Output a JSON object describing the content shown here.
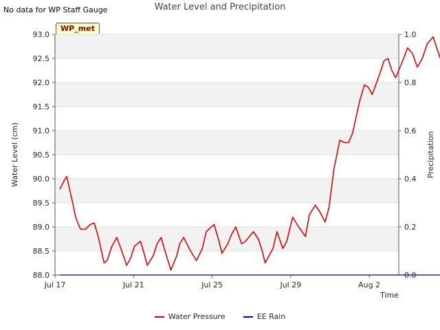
{
  "header": {
    "title": "Water Level and Precipitation",
    "no_data_note": "No data for WP Staff Gauge",
    "site_badge": "WP_met"
  },
  "axes": {
    "y_left_label": "Water Level (cm)",
    "y_right_label": "Precipitation",
    "x_label": "Time"
  },
  "legend": [
    {
      "label": "Water Pressure",
      "color": "#dd0000"
    },
    {
      "label": "EE Rain",
      "color": "#0000bb"
    }
  ],
  "chart_data": {
    "type": "line",
    "title": "Water Level and Precipitation",
    "xlabel": "Time",
    "ylabel": "Water Level (cm)",
    "y2label": "Precipitation",
    "x_ticks": [
      "Jul 17",
      "Jul 21",
      "Jul 25",
      "Jul 29",
      "Aug 2"
    ],
    "x_range": [
      "Jul 17",
      "Aug 3.5"
    ],
    "ylim": [
      88.0,
      93.0
    ],
    "y_ticks": [
      88.0,
      88.5,
      89.0,
      89.5,
      90.0,
      90.5,
      91.0,
      91.5,
      92.0,
      92.5,
      93.0
    ],
    "y2lim": [
      0.0,
      1.0
    ],
    "y2_ticks": [
      0.0,
      0.2,
      0.4,
      0.6,
      0.8,
      1.0
    ],
    "banded_background": true,
    "legend_position": "bottom-center",
    "series": [
      {
        "name": "Water Pressure",
        "axis": "left",
        "color": "#dd0000",
        "x_days": [
          0.25,
          0.45,
          0.6,
          0.9,
          1.05,
          1.3,
          1.55,
          1.8,
          2.0,
          2.2,
          2.5,
          2.65,
          2.9,
          3.15,
          3.4,
          3.65,
          3.85,
          4.05,
          4.35,
          4.5,
          4.7,
          5.0,
          5.2,
          5.4,
          5.6,
          5.9,
          6.2,
          6.35,
          6.55,
          6.9,
          7.2,
          7.5,
          7.7,
          8.1,
          8.35,
          8.5,
          8.8,
          9.0,
          9.2,
          9.5,
          9.7,
          10.1,
          10.35,
          10.55,
          10.7,
          11.1,
          11.3,
          11.6,
          11.8,
          12.1,
          12.4,
          12.75,
          12.95,
          13.25,
          13.5,
          13.75,
          13.95,
          14.2,
          14.5,
          14.75,
          14.95,
          15.15,
          15.5,
          15.75,
          15.95,
          16.15,
          16.55,
          16.75,
          16.95,
          17.15,
          17.35,
          17.55,
          17.75,
          17.95,
          18.2,
          18.45,
          18.7,
          18.95,
          19.25,
          19.45,
          19.7,
          19.9,
          20.15,
          20.4,
          20.6
        ],
        "values": [
          89.78,
          89.95,
          90.05,
          89.5,
          89.2,
          88.95,
          88.95,
          89.05,
          89.08,
          88.8,
          88.25,
          88.3,
          88.6,
          88.78,
          88.5,
          88.2,
          88.35,
          88.6,
          88.7,
          88.5,
          88.2,
          88.4,
          88.65,
          88.78,
          88.5,
          88.1,
          88.4,
          88.65,
          88.78,
          88.5,
          88.3,
          88.55,
          88.9,
          89.05,
          88.7,
          88.45,
          88.65,
          88.85,
          89.0,
          88.65,
          88.7,
          88.9,
          88.75,
          88.5,
          88.25,
          88.55,
          88.9,
          88.55,
          88.7,
          89.2,
          89.0,
          88.8,
          89.25,
          89.45,
          89.3,
          89.1,
          89.4,
          90.2,
          90.8,
          90.75,
          90.75,
          90.95,
          91.6,
          91.95,
          91.9,
          91.75,
          92.2,
          92.45,
          92.5,
          92.25,
          92.1,
          92.3,
          92.5,
          92.72,
          92.6,
          92.32,
          92.5,
          92.8,
          92.95,
          92.7,
          92.4,
          92.3,
          92.45,
          92.5,
          92.52
        ]
      },
      {
        "name": "EE Rain",
        "axis": "right",
        "color": "#0000bb",
        "x_days": [
          0.25,
          20.6
        ],
        "values": [
          0.0,
          0.0
        ]
      }
    ]
  }
}
